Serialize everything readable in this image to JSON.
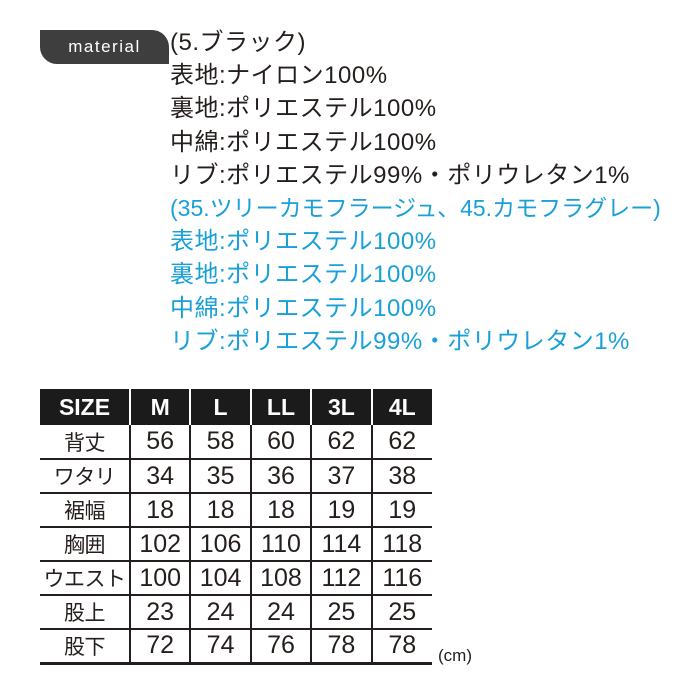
{
  "badge": {
    "label": "material",
    "bg_color": "#3e3e3e",
    "text_color": "#ffffff"
  },
  "materials": {
    "black_colorway": {
      "color": "#241e1c",
      "heading": "(5.ブラック)",
      "lines": [
        "表地:ナイロン100%",
        "裏地:ポリエステル100%",
        "中綿:ポリエステル100%",
        "リブ:ポリエステル99%・ポリウレタン1%"
      ]
    },
    "camo_colorways": {
      "color": "#19a0d8",
      "heading": "(35.ツリーカモフラージュ、45.カモフラグレー)",
      "lines": [
        "表地:ポリエステル100%",
        "裏地:ポリエステル100%",
        "中綿:ポリエステル100%",
        "リブ:ポリエステル99%・ポリウレタン1%"
      ]
    }
  },
  "size_table": {
    "header_bg": "#1b1b1b",
    "unit_note": "(cm)",
    "header": [
      "SIZE",
      "M",
      "L",
      "LL",
      "3L",
      "4L"
    ],
    "rows": [
      {
        "label": "背丈",
        "values": [
          "56",
          "58",
          "60",
          "62",
          "62"
        ]
      },
      {
        "label": "ワタリ",
        "values": [
          "34",
          "35",
          "36",
          "37",
          "38"
        ]
      },
      {
        "label": "裾幅",
        "values": [
          "18",
          "18",
          "18",
          "19",
          "19"
        ]
      },
      {
        "label": "胸囲",
        "values": [
          "102",
          "106",
          "110",
          "114",
          "118"
        ]
      },
      {
        "label": "ウエスト",
        "values": [
          "100",
          "104",
          "108",
          "112",
          "116"
        ]
      },
      {
        "label": "股上",
        "values": [
          "23",
          "24",
          "24",
          "25",
          "25"
        ]
      },
      {
        "label": "股下",
        "values": [
          "72",
          "74",
          "76",
          "78",
          "78"
        ]
      }
    ]
  }
}
